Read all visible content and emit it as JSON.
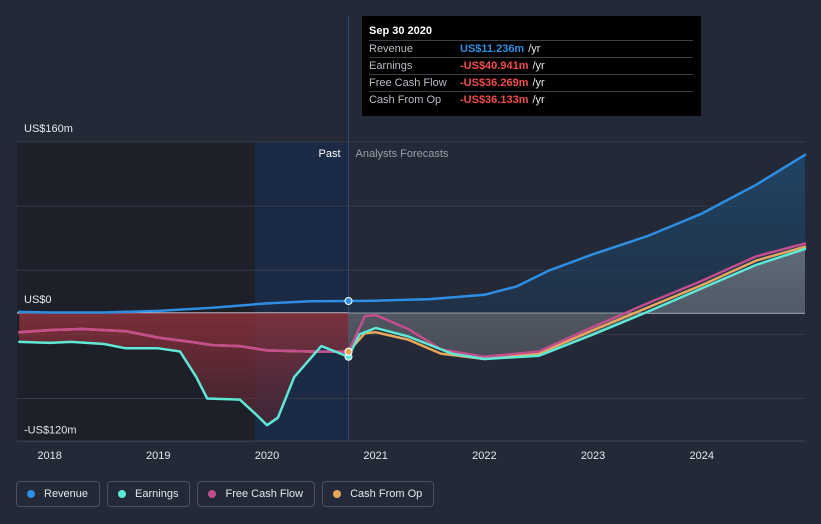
{
  "chart_data": {
    "type": "line",
    "y_axis": {
      "top_label": "US$160m",
      "zero_label": "US$0",
      "bottom_label": "-US$120m",
      "ylim": [
        -120,
        160
      ]
    },
    "x_ticks": [
      "2018",
      "2019",
      "2020",
      "2021",
      "2022",
      "2023",
      "2024"
    ],
    "xlim": [
      2017.7,
      2024.95
    ],
    "regions": {
      "past_label": "Past",
      "forecast_label": "Analysts Forecasts",
      "divider_x": 2020.75
    },
    "series": [
      {
        "name": "Revenue",
        "color": "#2d8ee3",
        "points": [
          [
            2017.72,
            1
          ],
          [
            2018.0,
            0.5
          ],
          [
            2018.5,
            0.5
          ],
          [
            2019.0,
            2
          ],
          [
            2019.5,
            5
          ],
          [
            2020.0,
            9
          ],
          [
            2020.4,
            11
          ],
          [
            2020.75,
            11.236
          ],
          [
            2021.0,
            11.5
          ],
          [
            2021.5,
            13
          ],
          [
            2022.0,
            17
          ],
          [
            2022.3,
            25
          ],
          [
            2022.6,
            40
          ],
          [
            2023.0,
            55
          ],
          [
            2023.5,
            72
          ],
          [
            2024.0,
            93
          ],
          [
            2024.5,
            120
          ],
          [
            2024.95,
            148
          ]
        ]
      },
      {
        "name": "Earnings",
        "color": "#5ee8d6",
        "points": [
          [
            2017.72,
            -27
          ],
          [
            2018.0,
            -28
          ],
          [
            2018.2,
            -27
          ],
          [
            2018.5,
            -29
          ],
          [
            2018.7,
            -33
          ],
          [
            2019.0,
            -33
          ],
          [
            2019.2,
            -36
          ],
          [
            2019.35,
            -60
          ],
          [
            2019.45,
            -80
          ],
          [
            2019.75,
            -81
          ],
          [
            2019.9,
            -95
          ],
          [
            2020.0,
            -105
          ],
          [
            2020.1,
            -98
          ],
          [
            2020.25,
            -60
          ],
          [
            2020.5,
            -31
          ],
          [
            2020.65,
            -37
          ],
          [
            2020.75,
            -40.941
          ],
          [
            2020.85,
            -20
          ],
          [
            2021.0,
            -14
          ],
          [
            2021.3,
            -22
          ],
          [
            2021.7,
            -38
          ],
          [
            2022.0,
            -43
          ],
          [
            2022.5,
            -40
          ],
          [
            2023.0,
            -20
          ],
          [
            2023.5,
            1
          ],
          [
            2024.0,
            23
          ],
          [
            2024.5,
            45
          ],
          [
            2024.95,
            60
          ]
        ]
      },
      {
        "name": "Free Cash Flow",
        "color": "#c44d8e",
        "points": [
          [
            2017.72,
            -18
          ],
          [
            2018.0,
            -16
          ],
          [
            2018.3,
            -15
          ],
          [
            2018.7,
            -17
          ],
          [
            2019.0,
            -23
          ],
          [
            2019.3,
            -27
          ],
          [
            2019.5,
            -30
          ],
          [
            2019.75,
            -31
          ],
          [
            2020.0,
            -35
          ],
          [
            2020.4,
            -36
          ],
          [
            2020.75,
            -36.269
          ],
          [
            2020.9,
            -3
          ],
          [
            2021.0,
            -2
          ],
          [
            2021.3,
            -15
          ],
          [
            2021.6,
            -34
          ],
          [
            2022.0,
            -41
          ],
          [
            2022.5,
            -36
          ],
          [
            2023.0,
            -13
          ],
          [
            2023.5,
            9
          ],
          [
            2024.0,
            30
          ],
          [
            2024.5,
            53
          ],
          [
            2024.95,
            65
          ]
        ]
      },
      {
        "name": "Cash From Op",
        "color": "#e8a85c",
        "points": [
          [
            2017.72,
            -18
          ],
          [
            2018.0,
            -16
          ],
          [
            2018.3,
            -15
          ],
          [
            2018.7,
            -17
          ],
          [
            2019.0,
            -23
          ],
          [
            2019.3,
            -27
          ],
          [
            2019.5,
            -30
          ],
          [
            2019.75,
            -31
          ],
          [
            2020.0,
            -35
          ],
          [
            2020.4,
            -36
          ],
          [
            2020.75,
            -36.133
          ],
          [
            2020.9,
            -19
          ],
          [
            2021.0,
            -18
          ],
          [
            2021.3,
            -25
          ],
          [
            2021.6,
            -38
          ],
          [
            2022.0,
            -43
          ],
          [
            2022.5,
            -38
          ],
          [
            2023.0,
            -16
          ],
          [
            2023.5,
            5
          ],
          [
            2024.0,
            26
          ],
          [
            2024.5,
            49
          ],
          [
            2024.95,
            62
          ]
        ]
      }
    ]
  },
  "tooltip": {
    "date": "Sep 30 2020",
    "rows": [
      {
        "name": "Revenue",
        "value": "US$11.236m",
        "unit": "/yr",
        "color": "#2d8ee3"
      },
      {
        "name": "Earnings",
        "value": "-US$40.941m",
        "unit": "/yr",
        "color": "#f04d4d"
      },
      {
        "name": "Free Cash Flow",
        "value": "-US$36.269m",
        "unit": "/yr",
        "color": "#f04d4d"
      },
      {
        "name": "Cash From Op",
        "value": "-US$36.133m",
        "unit": "/yr",
        "color": "#f04d4d"
      }
    ]
  },
  "legend": [
    {
      "label": "Revenue",
      "color": "#2d8ee3"
    },
    {
      "label": "Earnings",
      "color": "#5ee8d6"
    },
    {
      "label": "Free Cash Flow",
      "color": "#c44d8e"
    },
    {
      "label": "Cash From Op",
      "color": "#e8a85c"
    }
  ]
}
